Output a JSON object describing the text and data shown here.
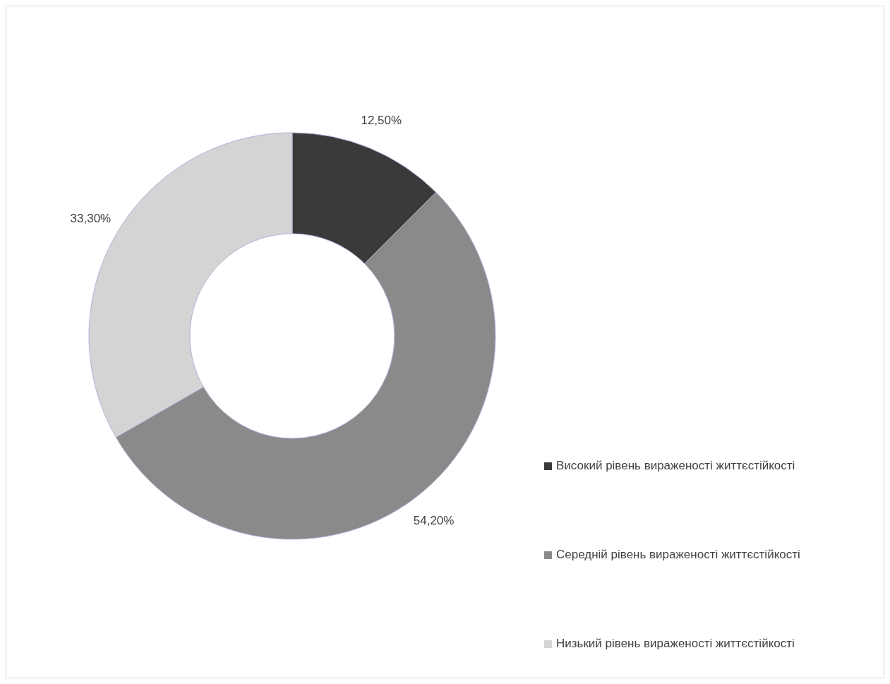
{
  "chart_data": {
    "type": "donut",
    "categories": [
      "Високий рівень вираженості життєстійкості",
      "Середній рівень вираженості життєстійкості",
      "Низький рівень вираженості життєстійкості"
    ],
    "values": [
      12.5,
      54.2,
      33.3
    ],
    "value_labels": [
      "12,50%",
      "54,20%",
      "33,30%"
    ],
    "colors": [
      "#3a3a3a",
      "#8a8a8a",
      "#d4d4d4"
    ],
    "legend": "right"
  }
}
